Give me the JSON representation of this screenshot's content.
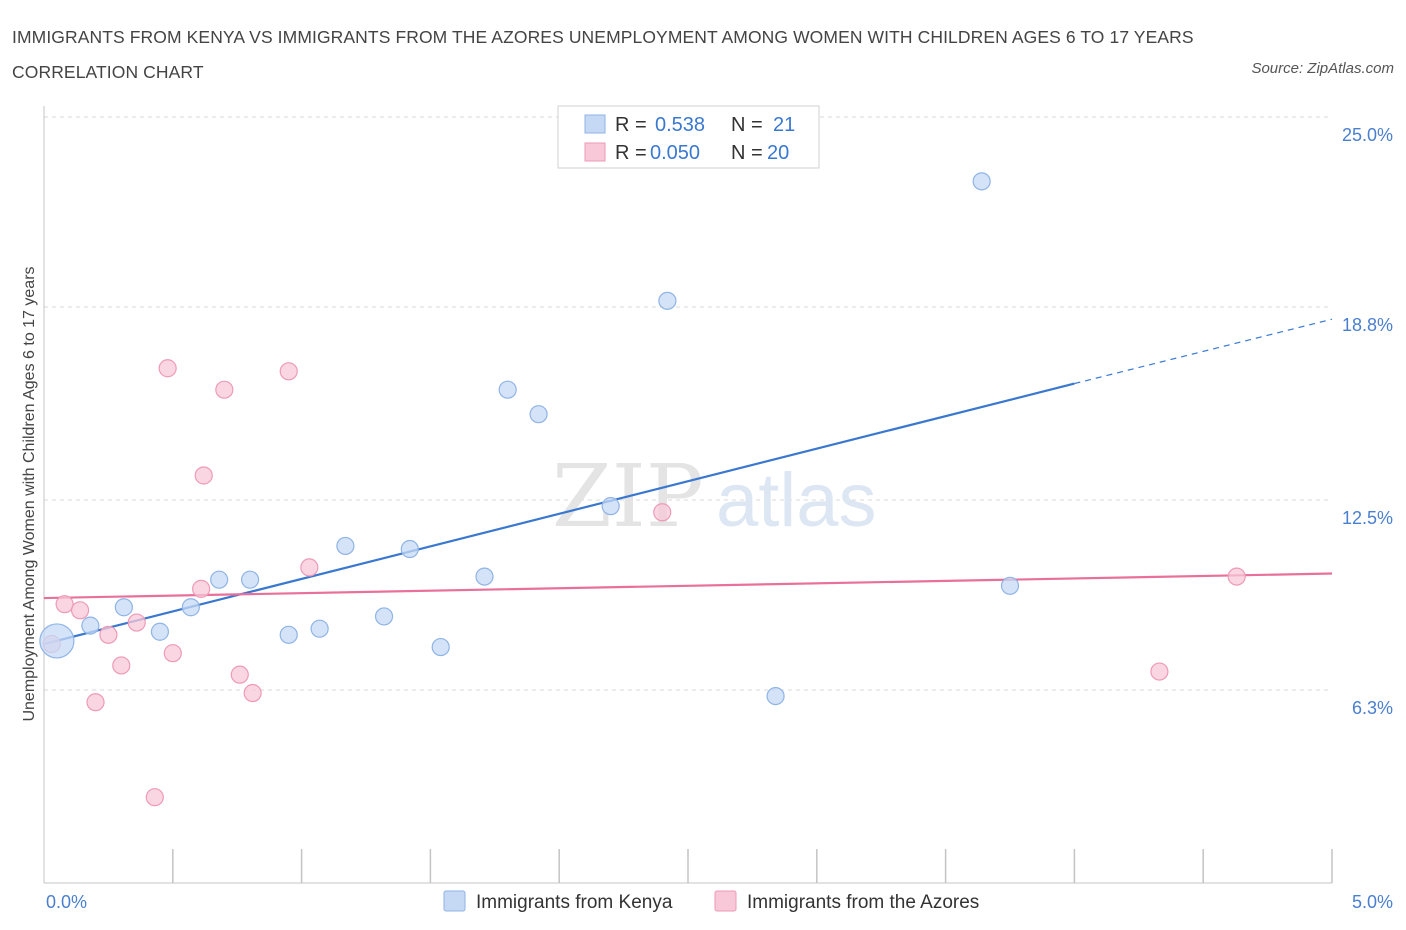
{
  "title": "IMMIGRANTS FROM KENYA VS IMMIGRANTS FROM THE AZORES UNEMPLOYMENT AMONG WOMEN WITH CHILDREN AGES 6 TO 17 YEARS CORRELATION CHART",
  "source": "Source: ZipAtlas.com",
  "watermark": {
    "zip": "ZIP",
    "atlas": "atlas"
  },
  "colors": {
    "kenya_fill": "#c5d9f5",
    "kenya_stroke": "#8fb4e6",
    "kenya_line": "#3a78d0",
    "azores_fill": "#f8c8d8",
    "azores_stroke": "#ee9ab6",
    "azores_line": "#e8709a",
    "tick_label": "#4a7fcf",
    "grid": "#d8d8d8"
  },
  "legend": {
    "kenya": {
      "r_label": "R =",
      "r_value": "0.538",
      "n_label": "N =",
      "n_value": "21"
    },
    "azores": {
      "r_label": "R =",
      "r_value": "0.050",
      "n_label": "N =",
      "n_value": "20"
    }
  },
  "bottom_legend": {
    "kenya": "Immigrants from Kenya",
    "azores": "Immigrants from the Azores"
  },
  "chart_data": {
    "type": "scatter",
    "title": "IMMIGRANTS FROM KENYA VS IMMIGRANTS FROM THE AZORES UNEMPLOYMENT AMONG WOMEN WITH CHILDREN AGES 6 TO 17 YEARS CORRELATION CHART",
    "xlabel": "",
    "ylabel": "Unemployment Among Women with Children Ages 6 to 17 years",
    "xlim": [
      0.0,
      5.0
    ],
    "ylim": [
      0.0,
      25.0
    ],
    "x_tick_labels": [
      "0.0%",
      "5.0%"
    ],
    "y_ticks": [
      6.3,
      12.5,
      18.8,
      25.0
    ],
    "y_tick_labels": [
      "6.3%",
      "12.5%",
      "18.8%",
      "25.0%"
    ],
    "grid": true,
    "legend_position": "top-center",
    "series": [
      {
        "name": "Immigrants from Kenya",
        "R": 0.538,
        "N": 21,
        "trend": {
          "x0": 0.0,
          "y0": 7.8,
          "x1": 4.0,
          "y1": 16.3,
          "dashed_to_x": 5.0,
          "dashed_to_y": 18.4
        },
        "points": [
          {
            "x": 0.05,
            "y": 7.9,
            "big": true
          },
          {
            "x": 0.18,
            "y": 8.4
          },
          {
            "x": 0.31,
            "y": 9.0
          },
          {
            "x": 0.45,
            "y": 8.2
          },
          {
            "x": 0.57,
            "y": 9.0
          },
          {
            "x": 0.68,
            "y": 9.9
          },
          {
            "x": 0.8,
            "y": 9.9
          },
          {
            "x": 0.95,
            "y": 8.1
          },
          {
            "x": 1.07,
            "y": 8.3
          },
          {
            "x": 1.17,
            "y": 11.0
          },
          {
            "x": 1.32,
            "y": 8.7
          },
          {
            "x": 1.42,
            "y": 10.9
          },
          {
            "x": 1.54,
            "y": 7.7
          },
          {
            "x": 1.71,
            "y": 10.0
          },
          {
            "x": 1.8,
            "y": 16.1
          },
          {
            "x": 1.92,
            "y": 15.3
          },
          {
            "x": 2.2,
            "y": 12.3
          },
          {
            "x": 2.42,
            "y": 19.0
          },
          {
            "x": 2.84,
            "y": 6.1
          },
          {
            "x": 3.64,
            "y": 22.9
          },
          {
            "x": 3.75,
            "y": 9.7
          }
        ]
      },
      {
        "name": "Immigrants from the Azores",
        "R": 0.05,
        "N": 20,
        "trend": {
          "x0": 0.0,
          "y0": 9.3,
          "x1": 5.0,
          "y1": 10.1
        },
        "points": [
          {
            "x": 0.03,
            "y": 7.8
          },
          {
            "x": 0.08,
            "y": 9.1
          },
          {
            "x": 0.14,
            "y": 8.9
          },
          {
            "x": 0.2,
            "y": 5.9
          },
          {
            "x": 0.25,
            "y": 8.1
          },
          {
            "x": 0.3,
            "y": 7.1
          },
          {
            "x": 0.36,
            "y": 8.5
          },
          {
            "x": 0.43,
            "y": 2.8
          },
          {
            "x": 0.48,
            "y": 16.8
          },
          {
            "x": 0.5,
            "y": 7.5
          },
          {
            "x": 0.61,
            "y": 9.6
          },
          {
            "x": 0.62,
            "y": 13.3
          },
          {
            "x": 0.7,
            "y": 16.1
          },
          {
            "x": 0.76,
            "y": 6.8
          },
          {
            "x": 0.81,
            "y": 6.2
          },
          {
            "x": 0.95,
            "y": 16.7
          },
          {
            "x": 1.03,
            "y": 10.3
          },
          {
            "x": 2.4,
            "y": 12.1
          },
          {
            "x": 4.33,
            "y": 6.9
          },
          {
            "x": 4.63,
            "y": 10.0
          }
        ]
      }
    ]
  }
}
